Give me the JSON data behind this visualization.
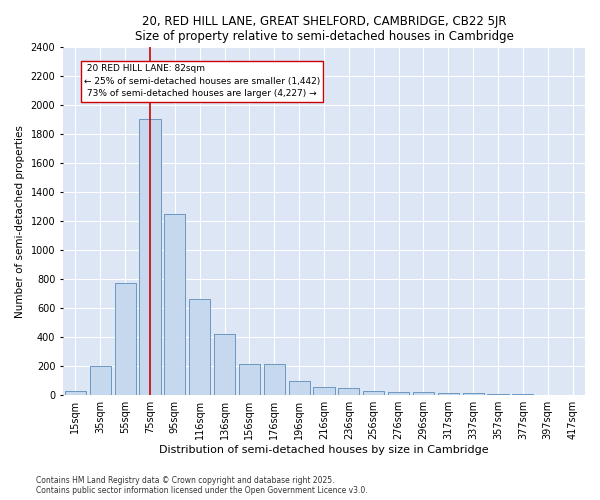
{
  "title1": "20, RED HILL LANE, GREAT SHELFORD, CAMBRIDGE, CB22 5JR",
  "title2": "Size of property relative to semi-detached houses in Cambridge",
  "xlabel": "Distribution of semi-detached houses by size in Cambridge",
  "ylabel": "Number of semi-detached properties",
  "footnote1": "Contains HM Land Registry data © Crown copyright and database right 2025.",
  "footnote2": "Contains public sector information licensed under the Open Government Licence v3.0.",
  "categories": [
    "15sqm",
    "35sqm",
    "55sqm",
    "75sqm",
    "95sqm",
    "116sqm",
    "136sqm",
    "156sqm",
    "176sqm",
    "196sqm",
    "216sqm",
    "236sqm",
    "256sqm",
    "276sqm",
    "296sqm",
    "317sqm",
    "337sqm",
    "357sqm",
    "377sqm",
    "397sqm",
    "417sqm"
  ],
  "values": [
    30,
    200,
    770,
    1900,
    1250,
    660,
    420,
    215,
    215,
    100,
    60,
    50,
    30,
    25,
    20,
    15,
    12,
    8,
    5,
    3,
    2
  ],
  "bar_color": "#c5d8ee",
  "bar_edge_color": "#5b8db8",
  "background_color": "#dce6f5",
  "red_line_label": "20 RED HILL LANE: 82sqm",
  "smaller_pct": "25%",
  "smaller_count": "1,442",
  "larger_pct": "73%",
  "larger_count": "4,227",
  "annotation_box_color": "#ffffff",
  "annotation_box_edge": "#cc0000",
  "red_line_color": "#cc0000",
  "red_line_x": 3.0,
  "ylim": [
    0,
    2400
  ],
  "yticks": [
    0,
    200,
    400,
    600,
    800,
    1000,
    1200,
    1400,
    1600,
    1800,
    2000,
    2200,
    2400
  ],
  "title_fontsize": 8.5,
  "ylabel_fontsize": 7.5,
  "xlabel_fontsize": 8,
  "tick_fontsize": 7,
  "footnote_fontsize": 5.5
}
